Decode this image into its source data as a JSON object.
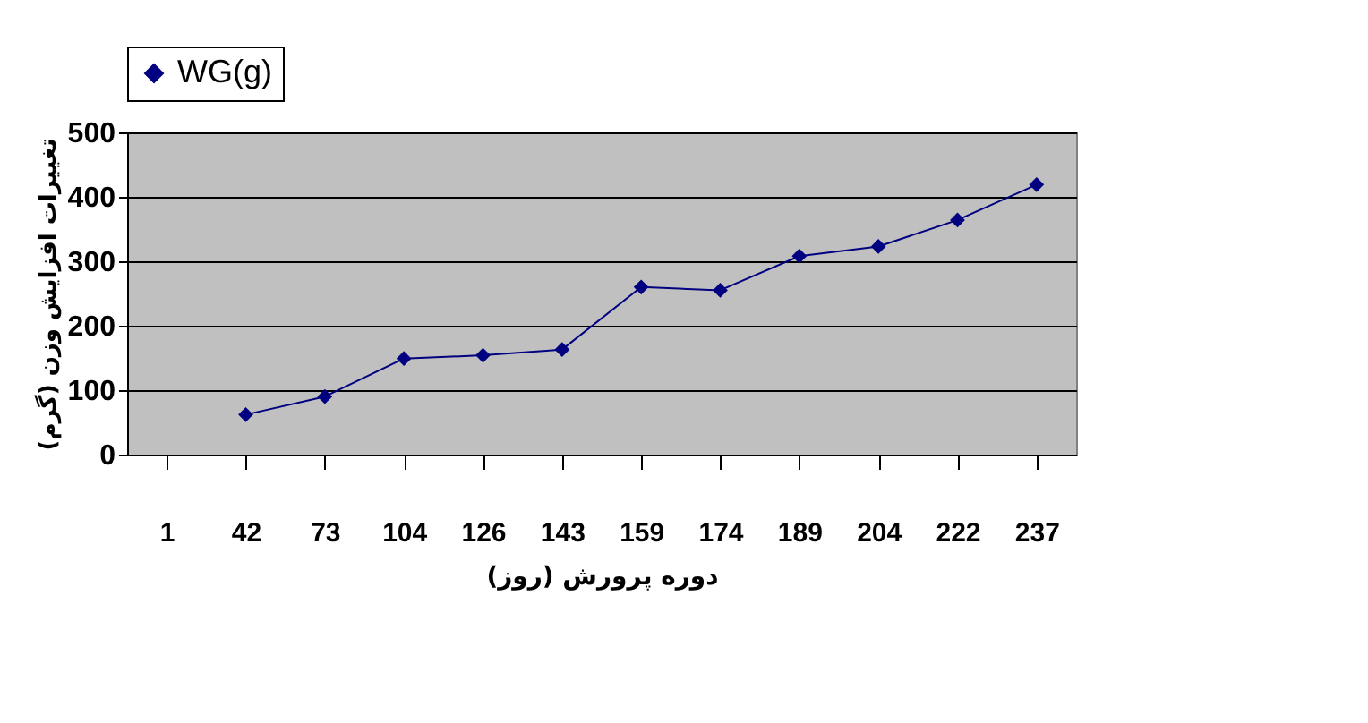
{
  "chart_data": {
    "type": "line",
    "xlabel": "دوره پرورش (روز)",
    "ylabel": "تغییرات افزایش وزن (گرم)",
    "categories": [
      "1",
      "42",
      "73",
      "104",
      "126",
      "143",
      "159",
      "174",
      "189",
      "204",
      "222",
      "237"
    ],
    "series": [
      {
        "name": "WG(g)",
        "color": "#000080",
        "values": [
          null,
          62,
          90,
          149,
          154,
          163,
          260,
          255,
          308,
          323,
          364,
          419
        ]
      }
    ],
    "ylim": [
      0,
      500
    ],
    "yticks": [
      0,
      100,
      200,
      300,
      400,
      500
    ],
    "grid": "y",
    "legend": "top",
    "marker": "diamond",
    "line_style": "solid"
  }
}
